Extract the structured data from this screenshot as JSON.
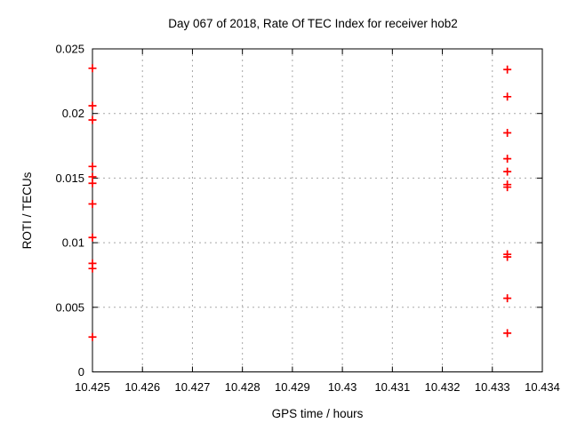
{
  "figure": {
    "background": "#ffffff",
    "axis_color": "#000000",
    "grid_color": "#a8a8a8",
    "text_color": "#000000"
  },
  "chart_data": {
    "type": "scatter",
    "title": "Day 067 of 2018, Rate Of TEC Index for receiver hob2",
    "xlabel": "GPS time / hours",
    "ylabel": "ROTI / TECUs",
    "xlim": [
      10.425,
      10.434
    ],
    "ylim": [
      0,
      0.025
    ],
    "grid": true,
    "legend": "none",
    "marker": {
      "shape": "plus",
      "color": "#ff0000",
      "size": 9
    },
    "x_ticks": [
      {
        "value": 10.425,
        "label": "10.425"
      },
      {
        "value": 10.426,
        "label": "10.426"
      },
      {
        "value": 10.427,
        "label": "10.427"
      },
      {
        "value": 10.428,
        "label": "10.428"
      },
      {
        "value": 10.429,
        "label": "10.429"
      },
      {
        "value": 10.43,
        "label": "10.43"
      },
      {
        "value": 10.431,
        "label": "10.431"
      },
      {
        "value": 10.432,
        "label": "10.432"
      },
      {
        "value": 10.433,
        "label": "10.433"
      },
      {
        "value": 10.434,
        "label": "10.434"
      }
    ],
    "y_ticks": [
      {
        "value": 0,
        "label": "0"
      },
      {
        "value": 0.005,
        "label": "0.005"
      },
      {
        "value": 0.01,
        "label": "0.01"
      },
      {
        "value": 0.015,
        "label": "0.015"
      },
      {
        "value": 0.02,
        "label": "0.02"
      },
      {
        "value": 0.025,
        "label": "0.025"
      }
    ],
    "series": [
      {
        "name": "ROTI",
        "color": "#ff0000",
        "points": [
          [
            10.425,
            0.0235
          ],
          [
            10.425,
            0.0206
          ],
          [
            10.425,
            0.0195
          ],
          [
            10.425,
            0.0159
          ],
          [
            10.425,
            0.0151
          ],
          [
            10.425,
            0.0146
          ],
          [
            10.425,
            0.013
          ],
          [
            10.425,
            0.0104
          ],
          [
            10.425,
            0.0084
          ],
          [
            10.425,
            0.008
          ],
          [
            10.425,
            0.0027
          ],
          [
            10.4333,
            0.0234
          ],
          [
            10.4333,
            0.0213
          ],
          [
            10.4333,
            0.0185
          ],
          [
            10.4333,
            0.0165
          ],
          [
            10.4333,
            0.0155
          ],
          [
            10.4333,
            0.0145
          ],
          [
            10.4333,
            0.0143
          ],
          [
            10.4333,
            0.0091
          ],
          [
            10.4333,
            0.0089
          ],
          [
            10.4333,
            0.0057
          ],
          [
            10.4333,
            0.003
          ]
        ]
      }
    ]
  }
}
